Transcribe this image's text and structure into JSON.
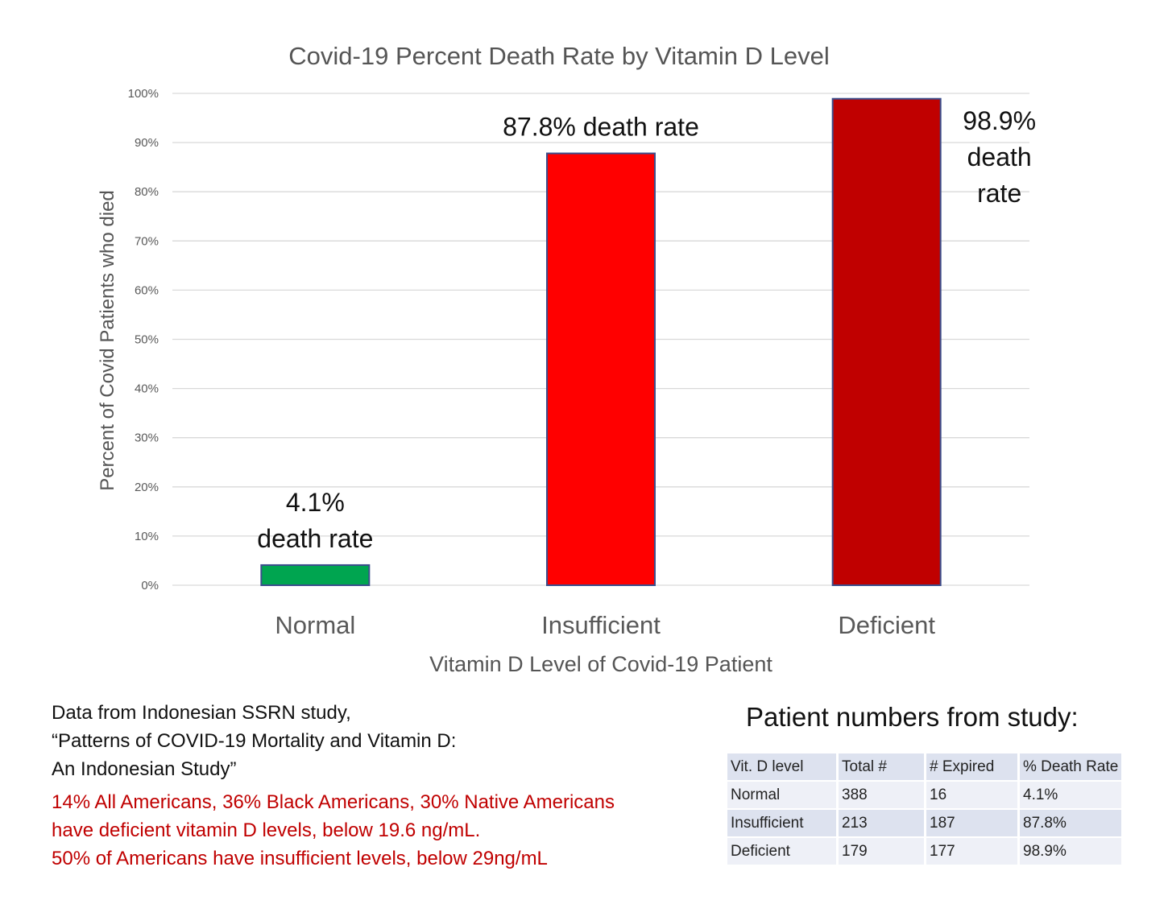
{
  "chart_data": {
    "type": "bar",
    "title": "Covid-19 Percent Death Rate by Vitamin D Level",
    "xlabel": "Vitamin D Level of Covid-19 Patient",
    "ylabel": "Percent of Covid Patients who died",
    "categories": [
      "Normal",
      "Insufficient",
      "Deficient"
    ],
    "values": [
      4.1,
      87.8,
      98.9
    ],
    "ylim": [
      0,
      100
    ],
    "yticks": [
      "0%",
      "10%",
      "20%",
      "30%",
      "40%",
      "50%",
      "60%",
      "70%",
      "80%",
      "90%",
      "100%"
    ],
    "bar_colors": [
      "#00a550",
      "#ff0000",
      "#c00000"
    ],
    "bar_border": "#3b4e8c",
    "grid": true,
    "legend": "none",
    "data_labels": [
      [
        "4.1%",
        "death rate"
      ],
      [
        "87.8% death rate"
      ],
      [
        "98.9%",
        "death",
        "rate"
      ]
    ]
  },
  "notes": {
    "source_lines": [
      "Data from Indonesian SSRN study,",
      "“Patterns of COVID-19 Mortality and Vitamin D:",
      "An Indonesian Study”"
    ],
    "highlight_lines": [
      "14% All Americans, 36% Black Americans, 30% Native Americans",
      "have deficient vitamin D levels, below 19.6 ng/mL.",
      "50% of Americans have insufficient levels, below 29ng/mL"
    ],
    "highlight_color": "#c00000"
  },
  "study_table": {
    "title": "Patient numbers from study:",
    "headers": [
      "Vit. D level",
      "Total #",
      "# Expired",
      "% Death Rate"
    ],
    "rows": [
      [
        "Normal",
        "388",
        "16",
        "4.1%"
      ],
      [
        "Insufficient",
        "213",
        "187",
        "87.8%"
      ],
      [
        "Deficient",
        "179",
        "177",
        "98.9%"
      ]
    ]
  }
}
